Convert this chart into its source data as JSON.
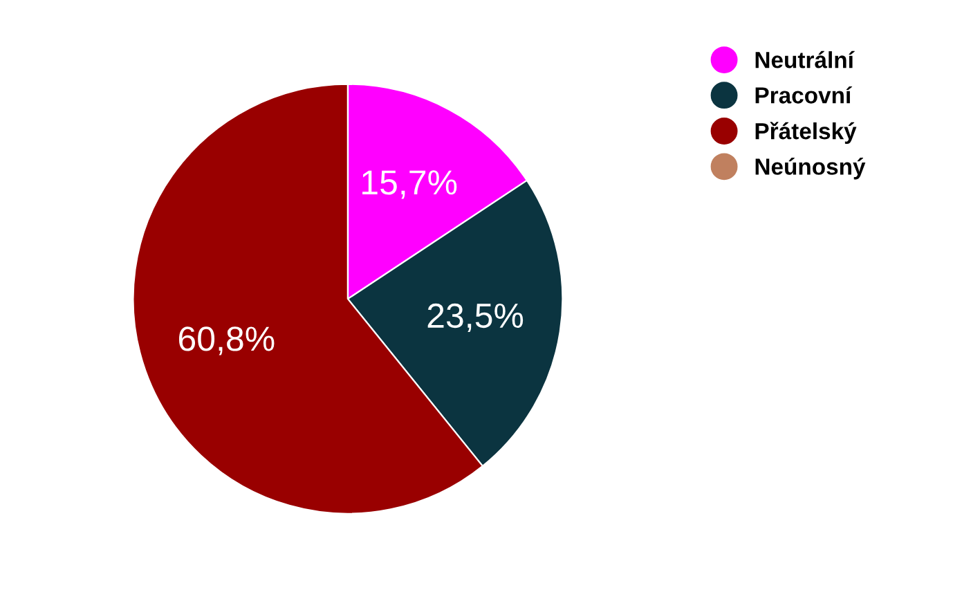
{
  "chart_data": {
    "type": "pie",
    "categories": [
      "Neutrální",
      "Pracovní",
      "Přátelský",
      "Neúnosný"
    ],
    "values": [
      15.7,
      23.5,
      60.8,
      0
    ],
    "colors": [
      "#ff00ff",
      "#0b3440",
      "#990000",
      "#c0805f"
    ],
    "value_labels": [
      "15,7%",
      "23,5%",
      "60,8%",
      null
    ],
    "legend": "top right"
  }
}
